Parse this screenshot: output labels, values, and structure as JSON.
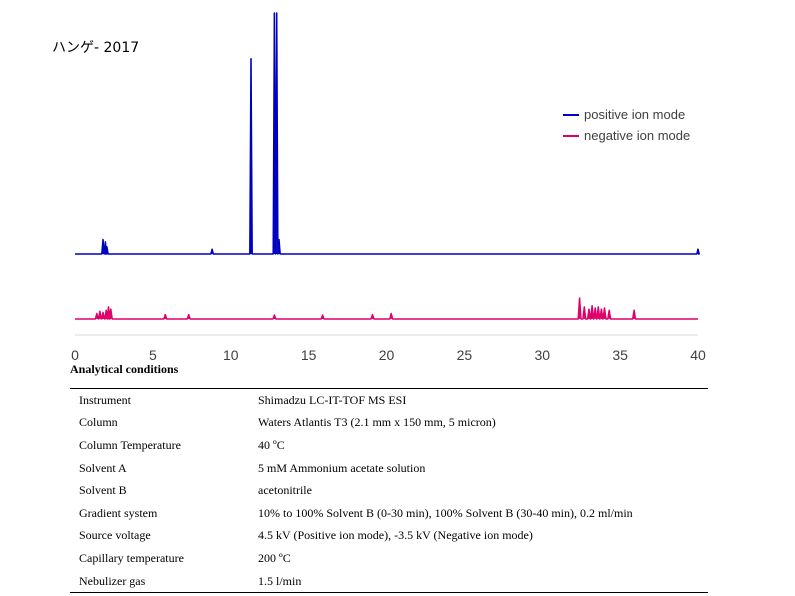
{
  "chart_data": {
    "type": "line",
    "title": "ハンゲ- 2017",
    "xlabel": "",
    "ylabel": "",
    "xlim": [
      0,
      40
    ],
    "x_ticks": [
      0,
      5,
      10,
      15,
      20,
      25,
      30,
      35,
      40
    ],
    "legend_position": "top-right",
    "series": [
      {
        "name": "positive ion mode",
        "color": "#0000c0",
        "peaks": [
          {
            "x": 1.8,
            "height": 0.06
          },
          {
            "x": 1.95,
            "height": 0.05
          },
          {
            "x": 2.05,
            "height": 0.03
          },
          {
            "x": 8.8,
            "height": 0.02
          },
          {
            "x": 11.3,
            "height": 0.81
          },
          {
            "x": 12.8,
            "height": 1.0
          },
          {
            "x": 12.95,
            "height": 1.0
          },
          {
            "x": 13.1,
            "height": 0.06
          },
          {
            "x": 40.0,
            "height": 0.02
          }
        ]
      },
      {
        "name": "negative ion mode",
        "color": "#e0006a",
        "peaks": [
          {
            "x": 1.4,
            "height": 0.25
          },
          {
            "x": 1.6,
            "height": 0.35
          },
          {
            "x": 1.8,
            "height": 0.3
          },
          {
            "x": 2.0,
            "height": 0.4
          },
          {
            "x": 2.15,
            "height": 0.55
          },
          {
            "x": 2.3,
            "height": 0.45
          },
          {
            "x": 5.8,
            "height": 0.2
          },
          {
            "x": 7.3,
            "height": 0.2
          },
          {
            "x": 12.8,
            "height": 0.18
          },
          {
            "x": 15.9,
            "height": 0.18
          },
          {
            "x": 19.1,
            "height": 0.2
          },
          {
            "x": 20.3,
            "height": 0.25
          },
          {
            "x": 32.4,
            "height": 0.95
          },
          {
            "x": 32.7,
            "height": 0.55
          },
          {
            "x": 33.0,
            "height": 0.45
          },
          {
            "x": 33.2,
            "height": 0.6
          },
          {
            "x": 33.4,
            "height": 0.5
          },
          {
            "x": 33.6,
            "height": 0.55
          },
          {
            "x": 33.8,
            "height": 0.45
          },
          {
            "x": 34.0,
            "height": 0.5
          },
          {
            "x": 34.3,
            "height": 0.4
          },
          {
            "x": 35.9,
            "height": 0.4
          }
        ]
      }
    ]
  },
  "conditions": {
    "heading": "Analytical conditions",
    "rows": [
      {
        "param": "Instrument",
        "value": "Shimadzu LC-IT-TOF MS ESI"
      },
      {
        "param": "Column",
        "value": "Waters Atlantis T3 (2.1 mm x 150 mm, 5 micron)"
      },
      {
        "param": "Column Temperature",
        "value": "40 ºC"
      },
      {
        "param": "Solvent A",
        "value": "5 mM Ammonium acetate solution"
      },
      {
        "param": "Solvent B",
        "value": "acetonitrile"
      },
      {
        "param": "Gradient system",
        "value": "10% to 100% Solvent B (0-30 min), 100% Solvent B (30-40 min), 0.2 ml/min"
      },
      {
        "param": "Source voltage",
        "value": "4.5 kV (Positive ion mode), -3.5 kV (Negative ion mode)"
      },
      {
        "param": "Capillary temperature",
        "value": "200 ºC"
      },
      {
        "param": "Nebulizer gas",
        "value": "1.5 l/min"
      }
    ]
  }
}
